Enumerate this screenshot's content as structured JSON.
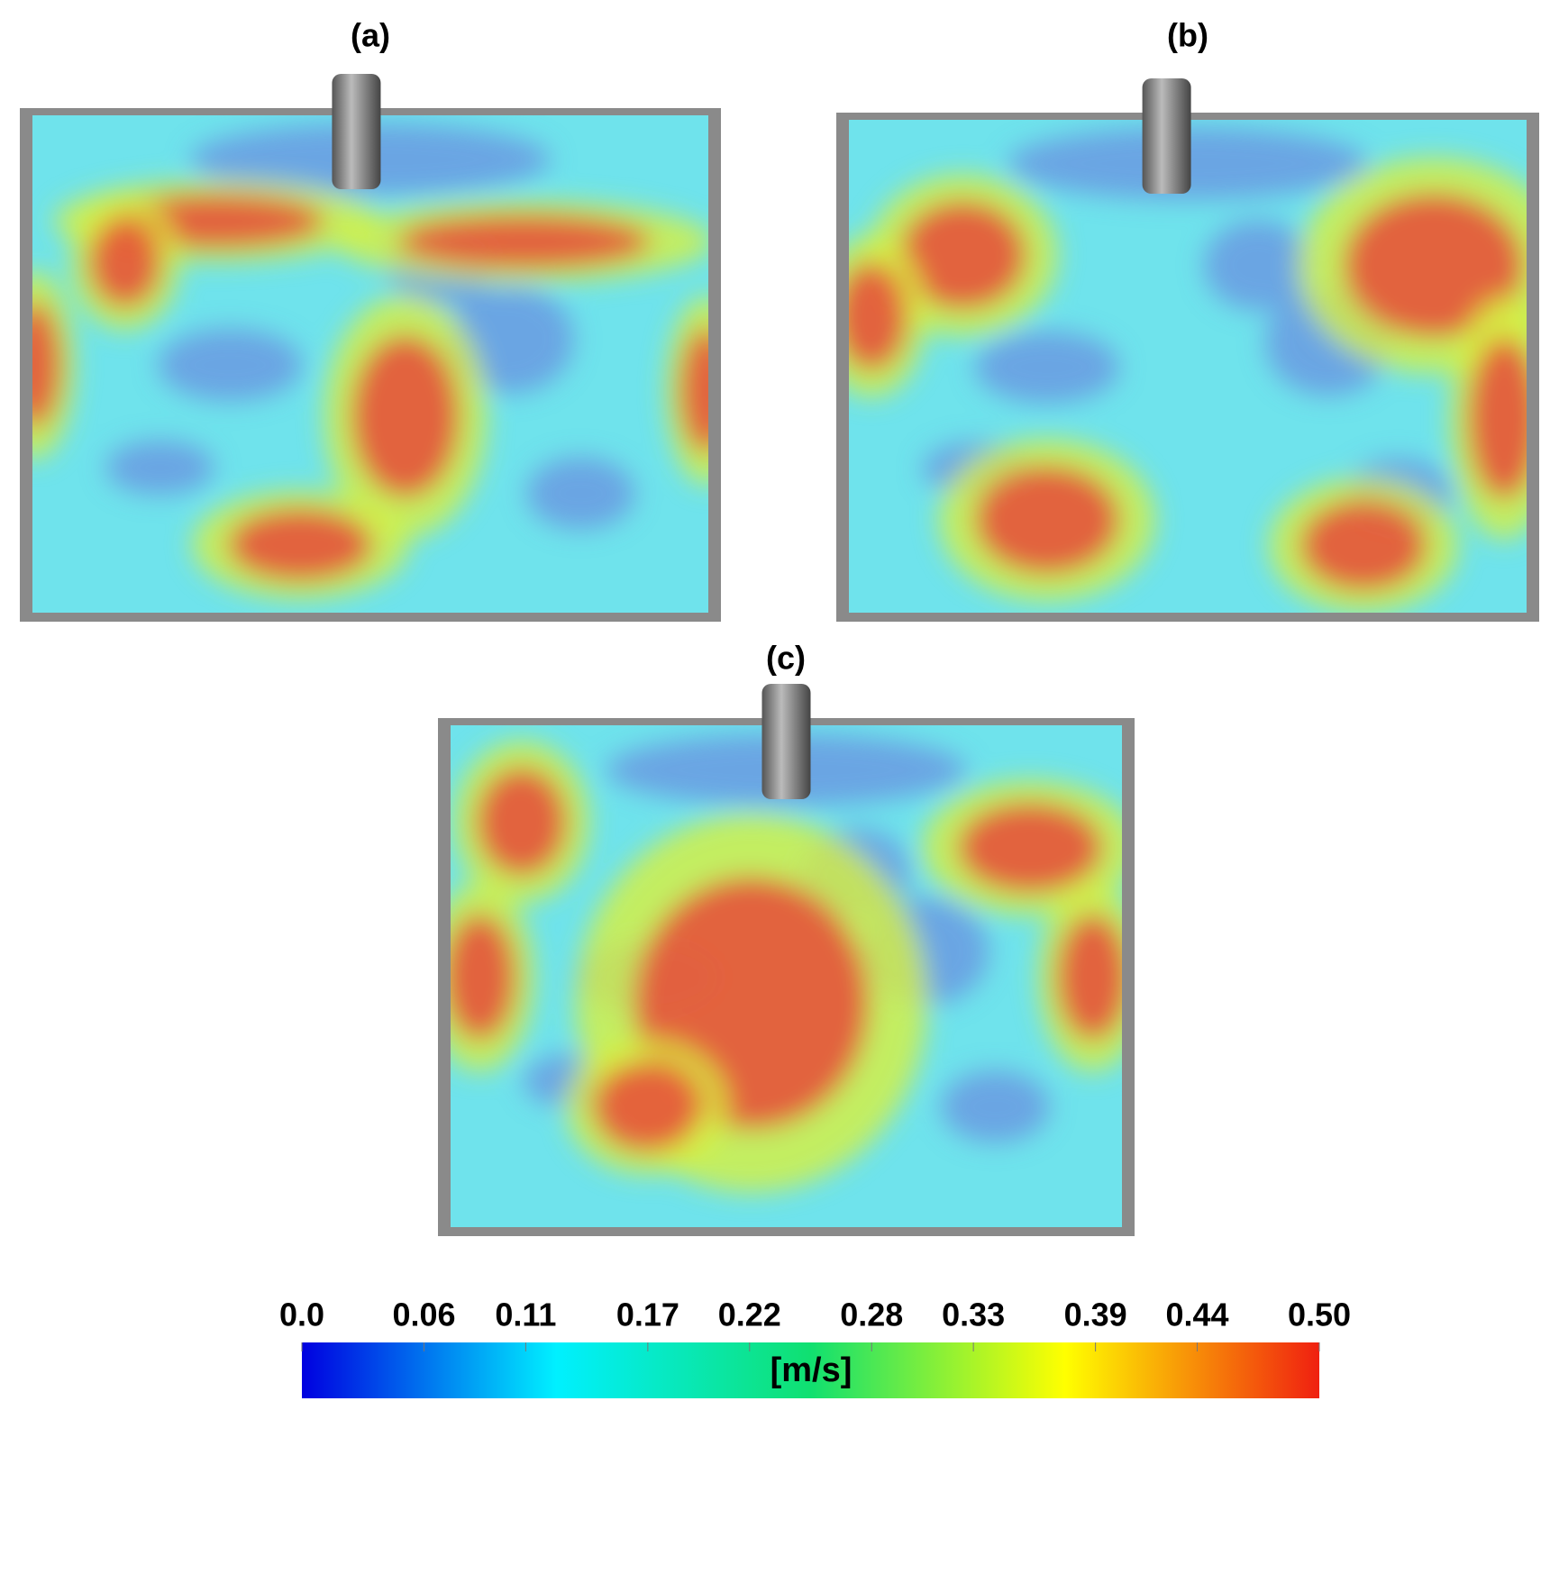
{
  "figure": {
    "panels": [
      {
        "label": "(a)"
      },
      {
        "label": "(b)"
      },
      {
        "label": "(c)"
      }
    ],
    "colorbar": {
      "label": "[m/s]",
      "clim": [
        0,
        0.5
      ],
      "ticks": [
        {
          "value": 0,
          "label": "0.0"
        },
        0.06,
        0.11,
        0.17,
        0.22,
        0.28,
        0.33,
        0.39,
        0.44,
        {
          "value": 0.5,
          "label": "0.50"
        }
      ]
    }
  }
}
